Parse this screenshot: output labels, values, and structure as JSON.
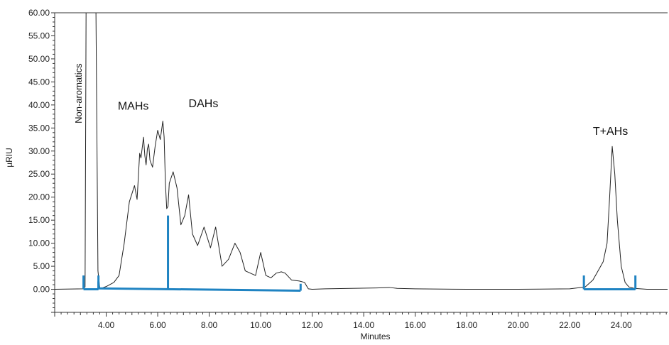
{
  "chart_data": {
    "type": "line",
    "title": "",
    "xlabel": "Minutes",
    "ylabel": "µRIU",
    "xlim": [
      2.0,
      25.8
    ],
    "ylim": [
      -5.0,
      60.0
    ],
    "x_ticks": [
      4,
      6,
      8,
      10,
      12,
      14,
      16,
      18,
      20,
      22,
      24
    ],
    "x_tick_labels": [
      "4.00",
      "6.00",
      "8.00",
      "10.00",
      "12.00",
      "14.00",
      "16.00",
      "18.00",
      "20.00",
      "22.00",
      "24.00"
    ],
    "y_ticks": [
      0,
      5,
      10,
      15,
      20,
      25,
      30,
      35,
      40,
      45,
      50,
      55,
      60
    ],
    "y_tick_labels": [
      "0.00",
      "5.00",
      "10.00",
      "15.00",
      "20.00",
      "25.00",
      "30.00",
      "35.00",
      "40.00",
      "45.00",
      "50.00",
      "55.00",
      "60.00"
    ],
    "grid": false,
    "legend": "none",
    "series": [
      {
        "color": "#222222",
        "x": [
          2.0,
          3.1,
          3.18,
          3.22,
          3.3,
          3.5,
          3.6,
          3.68,
          3.75,
          3.85,
          4.0,
          4.3,
          4.5,
          4.7,
          4.9,
          5.1,
          5.2,
          5.3,
          5.35,
          5.45,
          5.5,
          5.55,
          5.6,
          5.65,
          5.7,
          5.8,
          5.9,
          6.0,
          6.1,
          6.2,
          6.25,
          6.3,
          6.35,
          6.4,
          6.45,
          6.6,
          6.75,
          6.9,
          7.05,
          7.2,
          7.35,
          7.55,
          7.8,
          8.05,
          8.25,
          8.5,
          8.75,
          9.0,
          9.2,
          9.4,
          9.6,
          9.8,
          10.0,
          10.2,
          10.4,
          10.6,
          10.8,
          10.95,
          11.2,
          11.5,
          11.7,
          11.85,
          12.0,
          12.5,
          13.5,
          14.5,
          15.0,
          15.3,
          16.0,
          18.0,
          20.0,
          22.0,
          22.6,
          22.9,
          23.1,
          23.3,
          23.45,
          23.55,
          23.65,
          23.75,
          23.85,
          24.0,
          24.15,
          24.3,
          24.5,
          25.0,
          25.8
        ],
        "y": [
          0.0,
          0.1,
          0.5,
          62.0,
          62.0,
          62.0,
          62.0,
          4.0,
          0.2,
          0.3,
          0.6,
          1.5,
          3.0,
          10.0,
          19.0,
          22.5,
          19.5,
          29.5,
          28.5,
          33.0,
          29.0,
          27.0,
          30.5,
          31.5,
          28.0,
          26.5,
          31.0,
          34.5,
          32.5,
          36.5,
          33.0,
          23.0,
          17.5,
          18.0,
          23.0,
          25.5,
          22.0,
          14.0,
          16.0,
          20.5,
          12.0,
          9.5,
          13.5,
          9.0,
          13.5,
          5.0,
          6.5,
          10.0,
          8.0,
          4.0,
          3.5,
          3.0,
          8.0,
          3.0,
          2.5,
          3.5,
          3.8,
          3.5,
          2.0,
          1.8,
          1.5,
          0.1,
          0.0,
          0.1,
          0.2,
          0.3,
          0.4,
          0.2,
          0.1,
          0.0,
          0.0,
          0.1,
          0.5,
          2.0,
          4.0,
          6.0,
          10.0,
          20.0,
          31.0,
          25.0,
          15.0,
          5.0,
          1.5,
          0.5,
          0.2,
          0.0,
          0.0
        ]
      }
    ],
    "integration_markers": [
      {
        "name": "Non-aromatics",
        "x_start": 3.12,
        "x_end": 3.7,
        "y_start": 0.0,
        "y_end": 0.0,
        "tick_height": 3.0
      },
      {
        "name": "MAHs + DAHs",
        "x_start": 3.7,
        "x_end": 11.55,
        "y_start": 0.2,
        "y_end": -0.3,
        "divider_x": 6.4,
        "divider_top": 16.0,
        "tick_height": 1.5
      },
      {
        "name": "T+AHs",
        "x_start": 22.55,
        "x_end": 24.55,
        "y_start": 0.0,
        "y_end": 0.0,
        "tick_height": 3.0
      }
    ],
    "marker_color": "#1f83c2",
    "annotations": [
      {
        "text": "Non-aromatics",
        "x": 3.05,
        "y": 42.5,
        "rotation": -90
      },
      {
        "text": "MAHs",
        "x": 4.45,
        "y": 39.0
      },
      {
        "text": "DAHs",
        "x": 7.2,
        "y": 39.5
      },
      {
        "text": "T+AHs",
        "x": 22.9,
        "y": 33.5
      }
    ]
  }
}
